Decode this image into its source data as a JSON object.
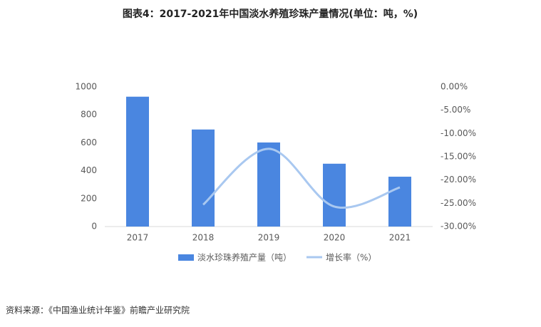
{
  "chart_data": {
    "type": "bar",
    "title": "图表4：2017-2021年中国淡水养殖珍珠产量情况(单位：吨，%)",
    "source": "资料来源：《中国渔业统计年鉴》前瞻产业研究院",
    "categories": [
      "2017",
      "2018",
      "2019",
      "2020",
      "2021"
    ],
    "series": [
      {
        "name": "淡水珍珠养殖产量（吨）",
        "type": "bar",
        "color": "#4a86e0",
        "values": [
          930,
          695,
          602,
          450,
          357
        ]
      },
      {
        "name": "增长率（%）",
        "type": "line",
        "axis": "y2",
        "color": "#a9c8f0",
        "values": [
          null,
          -25.3,
          -13.3,
          -25.7,
          -21.6
        ]
      }
    ],
    "ylim": [
      0,
      1000
    ],
    "yticks": [
      0,
      200,
      400,
      600,
      800,
      1000
    ],
    "y2lim": [
      -30,
      0
    ],
    "y2ticks": [
      {
        "value": 0,
        "label": "0.00%"
      },
      {
        "value": -5,
        "label": "-5.00%"
      },
      {
        "value": -10,
        "label": "-10.00%"
      },
      {
        "value": -15,
        "label": "-15.00%"
      },
      {
        "value": -20,
        "label": "-20.00%"
      },
      {
        "value": -25,
        "label": "-25.00%"
      },
      {
        "value": -30,
        "label": "-30.00%"
      }
    ],
    "legend": "bottom"
  }
}
